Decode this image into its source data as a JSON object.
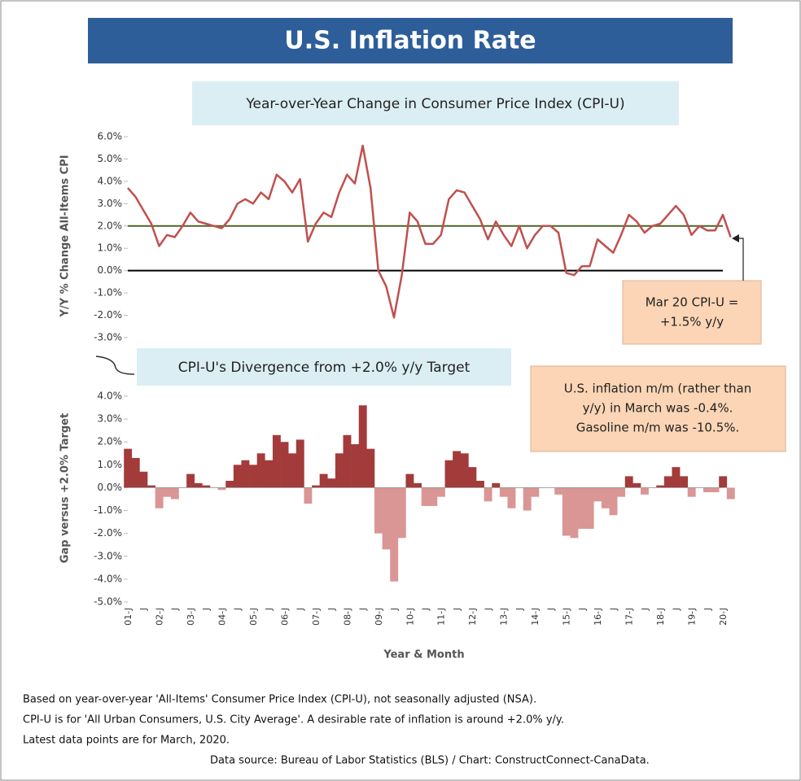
{
  "chart_data": {
    "type": "line",
    "title": "U.S. Inflation Rate",
    "subtitle": "Year-over-Year Change in Consumer Price Index (CPI-U)",
    "lower_subtitle": "CPI-U's Divergence from +2.0% y/y Target",
    "y_label": "Y/Y % Change All-Items CPI",
    "y2_label": "Gap versus +2.0% Target",
    "x_label": "Year & Month",
    "categories": [
      "01-J",
      null,
      "J",
      null,
      "02-J",
      null,
      "J",
      null,
      "03-J",
      null,
      "J",
      null,
      "04-J",
      null,
      "J",
      null,
      "05-J",
      null,
      "J",
      null,
      "06-J",
      null,
      "J",
      null,
      "07-J",
      null,
      "J",
      null,
      "08-J",
      null,
      "J",
      null,
      "09-J",
      null,
      "J",
      null,
      "10-J",
      null,
      "J",
      null,
      "11-J",
      null,
      "J",
      null,
      "12-J",
      null,
      "J",
      null,
      "13-J",
      null,
      "J",
      null,
      "14-J",
      null,
      "J",
      null,
      "15-J",
      null,
      "J",
      null,
      "16-J",
      null,
      "J",
      null,
      "17-J",
      null,
      "J",
      null,
      "18-J",
      null,
      "J",
      null,
      "19-J",
      null,
      "J",
      null,
      "20-J",
      null
    ],
    "series": [
      {
        "name": "CPI-U y/y",
        "color": "#c0504d",
        "values": [
          3.7,
          3.3,
          2.7,
          2.1,
          1.1,
          1.6,
          1.5,
          2.0,
          2.6,
          2.2,
          2.1,
          2.0,
          1.9,
          2.3,
          3.0,
          3.2,
          3.0,
          3.5,
          3.2,
          4.3,
          4.0,
          3.5,
          4.1,
          1.3,
          2.1,
          2.6,
          2.4,
          3.5,
          4.3,
          3.9,
          5.6,
          3.7,
          0.0,
          -0.7,
          -2.1,
          -0.2,
          2.6,
          2.2,
          1.2,
          1.2,
          1.6,
          3.2,
          3.6,
          3.5,
          2.9,
          2.3,
          1.4,
          2.2,
          1.6,
          1.1,
          2.0,
          1.0,
          1.6,
          2.0,
          2.0,
          1.7,
          -0.1,
          -0.2,
          0.2,
          0.2,
          1.4,
          1.1,
          0.8,
          1.6,
          2.5,
          2.2,
          1.7,
          2.0,
          2.1,
          2.5,
          2.9,
          2.5,
          1.6,
          2.0,
          1.8,
          1.8,
          2.5,
          1.5
        ]
      },
      {
        "name": "Gap versus +2.0% Target",
        "color": "#a33b3b",
        "negative_color": "#d99694",
        "values": [
          1.7,
          1.3,
          0.7,
          0.1,
          -0.9,
          -0.4,
          -0.5,
          0.0,
          0.6,
          0.2,
          0.1,
          0.0,
          -0.1,
          0.3,
          1.0,
          1.2,
          1.0,
          1.5,
          1.2,
          2.3,
          2.0,
          1.5,
          2.1,
          -0.7,
          0.1,
          0.6,
          0.4,
          1.5,
          2.3,
          1.9,
          3.6,
          1.7,
          -2.0,
          -2.7,
          -4.1,
          -2.2,
          0.6,
          0.2,
          -0.8,
          -0.8,
          -0.4,
          1.2,
          1.6,
          1.5,
          0.9,
          0.3,
          -0.6,
          0.2,
          -0.4,
          -0.9,
          0.0,
          -1.0,
          -0.4,
          0.0,
          0.0,
          -0.3,
          -2.1,
          -2.2,
          -1.8,
          -1.8,
          -0.6,
          -0.9,
          -1.2,
          -0.4,
          0.5,
          0.2,
          -0.3,
          0.0,
          0.1,
          0.5,
          0.9,
          0.5,
          -0.4,
          0.0,
          -0.2,
          -0.2,
          0.5,
          -0.5
        ]
      }
    ],
    "reference_line": {
      "value": 2,
      "color": "#4f6228"
    },
    "ylim": [
      -3,
      6
    ],
    "yticks": [
      {
        "value": 6,
        "label": "6.0%"
      },
      {
        "value": 5,
        "label": "5.0%"
      },
      {
        "value": 4,
        "label": "4.0%"
      },
      {
        "value": 3,
        "label": "3.0%"
      },
      {
        "value": 2,
        "label": "2.0%"
      },
      {
        "value": 1,
        "label": "1.0%"
      },
      {
        "value": 0,
        "label": "0.0%"
      },
      {
        "value": -1,
        "label": "-1.0%"
      },
      {
        "value": -2,
        "label": "-2.0%"
      },
      {
        "value": -3,
        "label": "-3.0%"
      }
    ],
    "y2lim": [
      -5,
      4
    ],
    "y2ticks": [
      {
        "value": 4,
        "label": "4.0%"
      },
      {
        "value": 3,
        "label": "3.0%"
      },
      {
        "value": 2,
        "label": "2.0%"
      },
      {
        "value": 1,
        "label": "1.0%"
      },
      {
        "value": 0,
        "label": "0.0%"
      },
      {
        "value": -1,
        "label": "-1.0%"
      },
      {
        "value": -2,
        "label": "-2.0%"
      },
      {
        "value": -3,
        "label": "-3.0%"
      },
      {
        "value": -4,
        "label": "-4.0%"
      },
      {
        "value": -5,
        "label": "-5.0%"
      }
    ],
    "annotations": [
      [
        "Mar 20 CPI-U =",
        "+1.5% y/y"
      ],
      [
        "U.S. inflation m/m (rather than",
        "y/y) in March was -0.4%.",
        "Gasoline m/m was -10.5%."
      ]
    ],
    "footnotes": [
      "Based on year-over-year 'All-Items' Consumer Price Index (CPI-U), not seasonally adjusted (NSA).",
      "CPI-U is for 'All Urban Consumers, U.S. City Average'. A desirable rate of inflation is around +2.0% y/y.",
      "Latest data points are for March, 2020.",
      "Data source: Bureau of Labor Statistics (BLS) / Chart: ConstructConnect-CanaData."
    ]
  }
}
